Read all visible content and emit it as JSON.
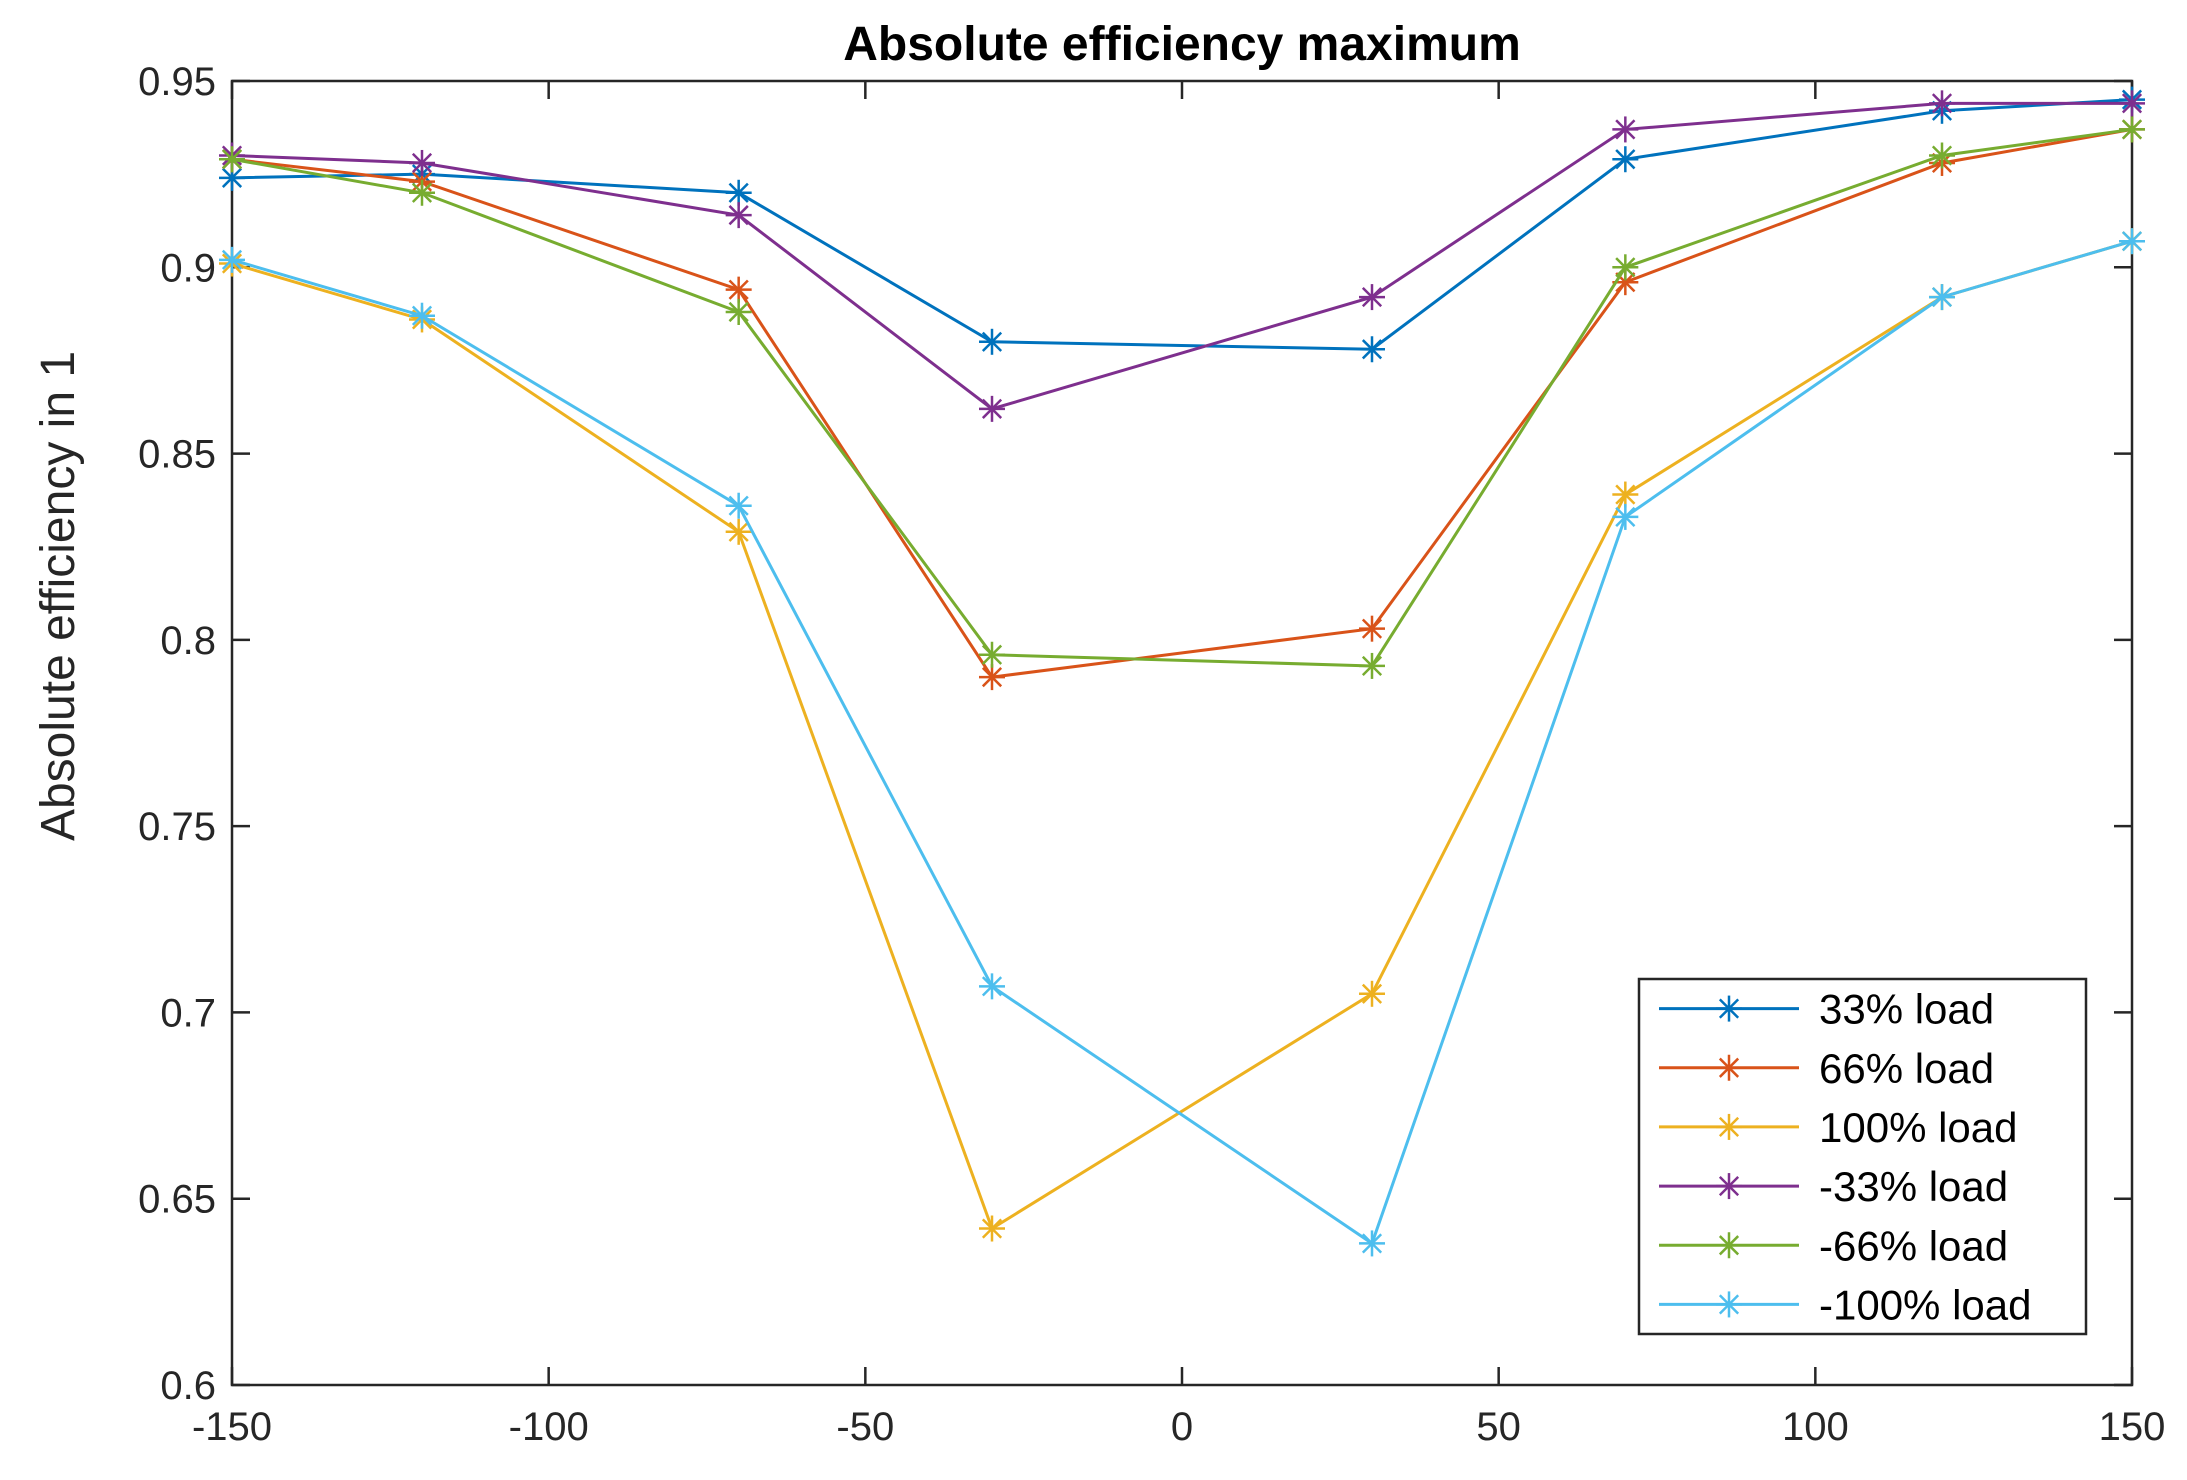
{
  "chart_data": {
    "type": "line",
    "title": "Absolute efficiency maximum",
    "xlabel": "",
    "ylabel": "Absolute efficiency in 1",
    "xlim": [
      -150,
      150
    ],
    "ylim": [
      0.6,
      0.95
    ],
    "x_ticks": [
      -150,
      -100,
      -50,
      0,
      50,
      100,
      150
    ],
    "x_tick_labels": [
      "-150",
      "-100",
      "-50",
      "0",
      "50",
      "100",
      "150"
    ],
    "y_ticks": [
      0.6,
      0.65,
      0.7,
      0.75,
      0.8,
      0.85,
      0.9,
      0.95
    ],
    "y_tick_labels": [
      "0.6",
      "0.65",
      "0.7",
      "0.75",
      "0.8",
      "0.85",
      "0.9",
      "0.95"
    ],
    "grid": false,
    "legend_position": "bottom-right",
    "marker": "asterisk",
    "x": [
      -150,
      -120,
      -70,
      -30,
      30,
      70,
      120,
      150
    ],
    "series": [
      {
        "name": "33% load",
        "color": "#0072BD",
        "values": [
          0.924,
          0.925,
          0.92,
          0.88,
          0.878,
          0.929,
          0.942,
          0.945
        ]
      },
      {
        "name": "66% load",
        "color": "#D95319",
        "values": [
          0.929,
          0.923,
          0.894,
          0.79,
          0.803,
          0.896,
          0.928,
          0.937
        ]
      },
      {
        "name": "100% load",
        "color": "#EDB120",
        "values": [
          0.901,
          0.886,
          0.829,
          0.642,
          0.705,
          0.839,
          0.892,
          0.907
        ]
      },
      {
        "name": "-33% load",
        "color": "#7E2F8E",
        "values": [
          0.93,
          0.928,
          0.914,
          0.862,
          0.892,
          0.937,
          0.944,
          0.944
        ]
      },
      {
        "name": "-66% load",
        "color": "#77AC30",
        "values": [
          0.929,
          0.92,
          0.888,
          0.796,
          0.793,
          0.9,
          0.93,
          0.937
        ]
      },
      {
        "name": "-100% load",
        "color": "#4DBEEE",
        "values": [
          0.902,
          0.887,
          0.836,
          0.707,
          0.638,
          0.833,
          0.892,
          0.907
        ]
      }
    ]
  }
}
